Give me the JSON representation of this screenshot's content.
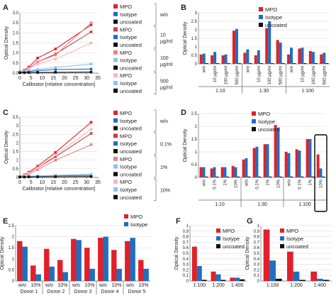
{
  "colors": {
    "MPO": "#e0202a",
    "Isotype": "#1f6fbf",
    "uncoated": "#111111",
    "MPO_mid": "#c8404a",
    "MPO_light": "#f08088",
    "MPO_pale": "#f7b8bc",
    "Iso_light": "#8ec4ea"
  },
  "chart_data": [
    {
      "id": "A",
      "panel_label": "A",
      "type": "line",
      "xlabel": "Calibrator [relative concentration]",
      "ylabel": "Optical Density",
      "xlim": [
        0,
        35
      ],
      "ylim": [
        0,
        3.0
      ],
      "xticks": [
        "0",
        "5",
        "10",
        "15",
        "20",
        "25",
        "30",
        "35"
      ],
      "yticks": [
        "0.0",
        "0.5",
        "1.0",
        "1.5",
        "2.0",
        "2.5",
        "3.0"
      ],
      "legend_groups": [
        {
          "label": "w/o",
          "entries": [
            "MPO",
            "Isotype",
            "uncoated"
          ],
          "colors": [
            "MPO",
            "Isotype",
            "uncoated"
          ]
        },
        {
          "label": "10 µg/ml",
          "entries": [
            "MPO",
            "Isotype",
            "uncoated"
          ],
          "colors": [
            "MPO_mid",
            "Isotype",
            "uncoated"
          ]
        },
        {
          "label": "100 µg/ml",
          "entries": [
            "MPO",
            "Isotype",
            "uncoated"
          ],
          "colors": [
            "MPO_light",
            "Iso_light",
            "uncoated"
          ]
        },
        {
          "label": "500 µg/ml",
          "entries": [
            "MPO",
            "Isotype",
            "uncoated"
          ],
          "colors": [
            "MPO_pale",
            "Iso_light",
            "uncoated"
          ]
        }
      ],
      "series": [
        {
          "color": "MPO",
          "x": [
            0,
            2,
            4,
            8,
            16,
            32
          ],
          "y": [
            0.05,
            0.15,
            0.3,
            0.75,
            1.2,
            2.4
          ]
        },
        {
          "color": "MPO_mid",
          "x": [
            0,
            2,
            4,
            8,
            16,
            32
          ],
          "y": [
            0.05,
            0.12,
            0.25,
            0.55,
            0.95,
            2.05
          ]
        },
        {
          "color": "MPO_light",
          "x": [
            0,
            2,
            4,
            8,
            16,
            32
          ],
          "y": [
            0.05,
            0.12,
            0.25,
            0.55,
            0.9,
            2.5
          ]
        },
        {
          "color": "MPO_pale",
          "x": [
            0,
            2,
            4,
            8,
            16,
            32
          ],
          "y": [
            0.05,
            0.1,
            0.2,
            0.45,
            0.7,
            1.5
          ]
        },
        {
          "color": "Isotype",
          "x": [
            0,
            2,
            4,
            8,
            16,
            32
          ],
          "y": [
            0.05,
            0.06,
            0.08,
            0.12,
            0.18,
            0.2
          ]
        },
        {
          "color": "Iso_light",
          "x": [
            0,
            2,
            4,
            8,
            16,
            32
          ],
          "y": [
            0.05,
            0.08,
            0.12,
            0.18,
            0.28,
            0.45
          ]
        },
        {
          "color": "uncoated",
          "x": [
            0,
            2,
            4,
            8,
            16,
            32
          ],
          "y": [
            0.02,
            0.02,
            0.03,
            0.03,
            0.04,
            0.05
          ]
        }
      ]
    },
    {
      "id": "B",
      "panel_label": "B",
      "type": "bar",
      "ylabel": "Optical Density",
      "ylim": [
        0,
        3
      ],
      "yticks": [
        "0",
        "0.5",
        "1",
        "1.5",
        "2",
        "2.5",
        "3"
      ],
      "categories": [
        "w/o",
        "10 µg/ml",
        "100 µg/ml",
        "500 µg/ml",
        "w/o",
        "10 µg/ml",
        "100 µg/ml",
        "500 µg/ml",
        "w/o",
        "10 µg/ml",
        "100 µg/ml",
        "500 µg/ml"
      ],
      "groups": [
        "1:10",
        "1:30",
        "1:100"
      ],
      "legend": [
        "MPO",
        "Isotype",
        "uncoated"
      ],
      "series": [
        {
          "name": "MPO",
          "color": "MPO",
          "values": [
            0.55,
            0.5,
            0.5,
            1.95,
            0.65,
            0.5,
            2.1,
            1.4,
            0.55,
            0.9,
            0.75,
            0.55
          ]
        },
        {
          "name": "Isotype",
          "color": "Isotype",
          "values": [
            0.6,
            0.7,
            0.55,
            2.05,
            0.85,
            0.8,
            2.5,
            1.25,
            0.95,
            0.95,
            0.7,
            0.65
          ]
        },
        {
          "name": "uncoated",
          "color": "uncoated",
          "values": [
            0.04,
            0.04,
            0.04,
            0.04,
            0.04,
            0.04,
            0.04,
            0.04,
            0.04,
            0.04,
            0.04,
            0.04
          ]
        }
      ]
    },
    {
      "id": "C",
      "panel_label": "C",
      "type": "line",
      "xlabel": "Calibrator [relative concentration]",
      "ylabel": "Optical Density",
      "xlim": [
        0,
        35
      ],
      "ylim": [
        0,
        3.5
      ],
      "xticks": [
        "0",
        "5",
        "10",
        "15",
        "20",
        "25",
        "30",
        "35"
      ],
      "yticks": [
        "0",
        "0.5",
        "1",
        "1.5",
        "2",
        "2.5",
        "3",
        "3.5"
      ],
      "legend_groups": [
        {
          "label": "w/o",
          "entries": [
            "MPO",
            "Isotype",
            "uncoated"
          ],
          "colors": [
            "MPO",
            "Isotype",
            "uncoated"
          ]
        },
        {
          "label": "0.1%",
          "entries": [
            "MPO",
            "Isotype",
            "uncoated"
          ],
          "colors": [
            "MPO_mid",
            "Isotype",
            "uncoated"
          ]
        },
        {
          "label": "1%",
          "entries": [
            "MPO",
            "Isotype",
            "uncoated"
          ],
          "colors": [
            "MPO_light",
            "Iso_light",
            "uncoated"
          ]
        },
        {
          "label": "10%",
          "entries": [
            "MPO",
            "Isotype",
            "uncoated"
          ],
          "colors": [
            "MPO_pale",
            "Iso_light",
            "uncoated"
          ]
        }
      ],
      "series": [
        {
          "color": "MPO",
          "x": [
            0,
            2,
            4,
            8,
            16,
            32
          ],
          "y": [
            0.05,
            0.15,
            0.3,
            0.65,
            1.45,
            3.2
          ]
        },
        {
          "color": "MPO_mid",
          "x": [
            0,
            2,
            4,
            8,
            16,
            32
          ],
          "y": [
            0.05,
            0.12,
            0.25,
            0.55,
            1.2,
            2.55
          ]
        },
        {
          "color": "MPO_light",
          "x": [
            0,
            2,
            4,
            8,
            16,
            32
          ],
          "y": [
            0.05,
            0.1,
            0.2,
            0.45,
            1.0,
            1.9
          ]
        },
        {
          "color": "MPO_pale",
          "x": [
            0,
            2,
            4,
            8,
            16,
            32
          ],
          "y": [
            0.05,
            0.12,
            0.25,
            0.55,
            1.3,
            2.8
          ]
        },
        {
          "color": "Isotype",
          "x": [
            0,
            2,
            4,
            8,
            16,
            32
          ],
          "y": [
            0.04,
            0.05,
            0.06,
            0.08,
            0.1,
            0.12
          ]
        },
        {
          "color": "Iso_light",
          "x": [
            0,
            2,
            4,
            8,
            16,
            32
          ],
          "y": [
            0.04,
            0.05,
            0.07,
            0.09,
            0.12,
            0.18
          ]
        },
        {
          "color": "uncoated",
          "x": [
            0,
            2,
            4,
            8,
            16,
            32
          ],
          "y": [
            0.02,
            0.02,
            0.03,
            0.03,
            0.04,
            0.05
          ]
        }
      ]
    },
    {
      "id": "D",
      "panel_label": "D",
      "type": "bar",
      "ylabel": "Optical Density",
      "ylim": [
        0,
        2.5
      ],
      "yticks": [
        "0",
        "0.5",
        "1",
        "1.5",
        "2",
        "2.5"
      ],
      "categories": [
        "w/o",
        "0.1%",
        "1%",
        "10%",
        "w/o",
        "0.1%",
        "1%",
        "10%",
        "w/o",
        "0.1%",
        "1%",
        "10%"
      ],
      "groups": [
        "1:10",
        "1:30",
        "1:100"
      ],
      "legend": [
        "MPO",
        "Isotype",
        "uncoated"
      ],
      "highlight_index": 11,
      "series": [
        {
          "name": "MPO",
          "color": "MPO",
          "values": [
            0.4,
            0.35,
            0.4,
            0.45,
            0.7,
            1.15,
            1.3,
            2.05,
            1.0,
            1.1,
            1.5,
            0.9
          ]
        },
        {
          "name": "Isotype",
          "color": "Isotype",
          "values": [
            0.4,
            0.4,
            0.4,
            0.4,
            0.75,
            1.2,
            1.3,
            1.95,
            0.95,
            1.05,
            1.5,
            0.35
          ]
        },
        {
          "name": "uncoated",
          "color": "uncoated",
          "values": [
            0.03,
            0.03,
            0.03,
            0.03,
            0.03,
            0.03,
            0.03,
            0.03,
            0.03,
            0.03,
            0.03,
            0.03
          ]
        }
      ]
    },
    {
      "id": "E",
      "panel_label": "E",
      "type": "bar",
      "ylabel": "Optical Density",
      "ylim": [
        0,
        2.5
      ],
      "yticks": [
        "0",
        "0.5",
        "1",
        "1.5",
        "2",
        "2.5"
      ],
      "categories": [
        "w/o",
        "10%",
        "w/o",
        "10%",
        "w/o",
        "10%",
        "w/o",
        "10%",
        "w/o",
        "10%"
      ],
      "groups": [
        "Donor 1",
        "Donor 2",
        "Donor 3",
        "Donor 4",
        "Donor 5"
      ],
      "legend": [
        "MPO",
        "Isotype"
      ],
      "series": [
        {
          "name": "MPO",
          "color": "MPO",
          "values": [
            1.8,
            0.7,
            1.45,
            0.95,
            1.9,
            1.5,
            1.95,
            1.4,
            1.8,
            0.95
          ]
        },
        {
          "name": "Isotype",
          "color": "Isotype",
          "values": [
            1.55,
            0.3,
            0.65,
            0.4,
            1.85,
            0.55,
            2.0,
            0.55,
            1.95,
            0.55
          ]
        }
      ]
    },
    {
      "id": "F",
      "panel_label": "F",
      "type": "bar",
      "ylabel": "Optical Density",
      "ylim": [
        0,
        1
      ],
      "yticks": [
        "0",
        "0.1",
        "0.2",
        "0.3",
        "0.4",
        "0.5",
        "0.6",
        "0.7",
        "0.8",
        "0.9",
        "1"
      ],
      "categories": [
        "1:100",
        "1:200",
        "1:400"
      ],
      "legend": [
        "MPO",
        "Isotype",
        "uncoated"
      ],
      "series": [
        {
          "name": "MPO",
          "color": "MPO",
          "values": [
            0.62,
            0.17,
            0.06
          ]
        },
        {
          "name": "Isotype",
          "color": "Isotype",
          "values": [
            0.27,
            0.12,
            0.06
          ]
        },
        {
          "name": "uncoated",
          "color": "uncoated",
          "values": [
            0.02,
            0.02,
            0.03
          ]
        }
      ]
    },
    {
      "id": "G",
      "panel_label": "G",
      "type": "bar",
      "ylabel": "Optical Density",
      "ylim": [
        0,
        1
      ],
      "yticks": [
        "0",
        "0.1",
        "0.2",
        "0.3",
        "0.4",
        "0.5",
        "0.6",
        "0.7",
        "0.8",
        "0.9",
        "1"
      ],
      "categories": [
        "1:100",
        "1:200",
        "1:400"
      ],
      "legend": [
        "MPO",
        "Isotype",
        "uncoated"
      ],
      "series": [
        {
          "name": "MPO",
          "color": "MPO",
          "values": [
            0.93,
            0.53,
            0.17
          ]
        },
        {
          "name": "Isotype",
          "color": "Isotype",
          "values": [
            0.37,
            0.17,
            0.04
          ]
        },
        {
          "name": "uncoated",
          "color": "uncoated",
          "values": [
            0.04,
            0.02,
            0.02
          ]
        }
      ]
    }
  ]
}
